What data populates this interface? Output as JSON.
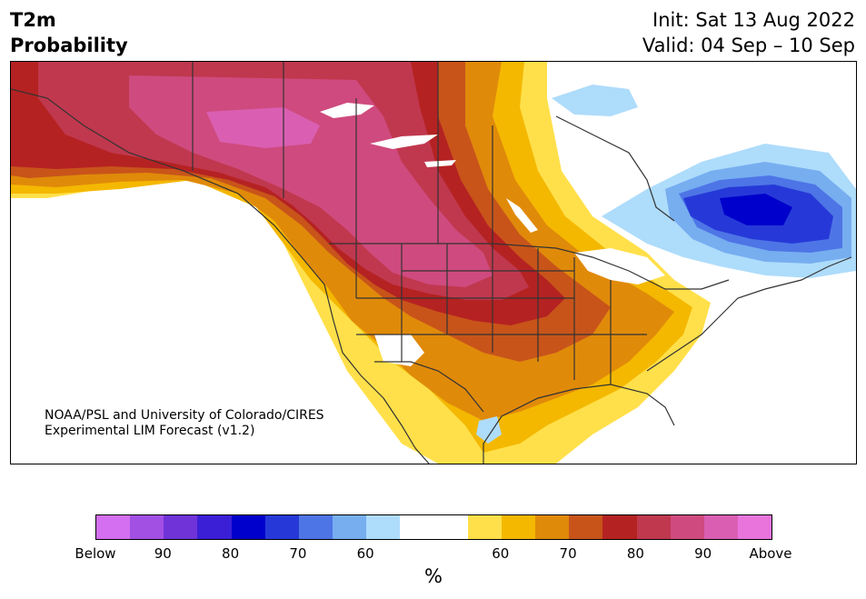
{
  "header": {
    "title_line1": "T2m",
    "title_line2": "Probability",
    "init_line": "Init: Sat 13 Aug 2022",
    "valid_line": "Valid: 04 Sep – 10 Sep"
  },
  "credit": {
    "line1": "NOAA/PSL and University of Colorado/CIRES",
    "line2": "Experimental LIM Forecast (v1.2)"
  },
  "colorbar": {
    "unit": "%",
    "colors": [
      "#d36ff0",
      "#a24fe4",
      "#6f33d8",
      "#3b1fd7",
      "#0000cc",
      "#2639d8",
      "#4e75e6",
      "#76aef0",
      "#aedcfb",
      "#ffffff",
      "#ffffff",
      "#ffe04a",
      "#f4b800",
      "#e08a0a",
      "#c8541a",
      "#b52222",
      "#c0384e",
      "#cf4a7e",
      "#da5fb2",
      "#e874dc"
    ],
    "tick_labels": [
      "Below",
      "90",
      "80",
      "70",
      "60",
      "60",
      "70",
      "80",
      "90",
      "Above"
    ]
  },
  "map": {
    "colors": {
      "ocean": "#ffffff",
      "land_neutral": "#ffffff",
      "p60_warm": "#ffe04a",
      "p65_warm": "#f4b800",
      "p70_warm": "#e08a0a",
      "p75_warm": "#c8541a",
      "p80_warm": "#b52222",
      "p85_warm": "#c0384e",
      "p90_warm": "#cf4a7e",
      "p95_warm": "#da5fb2",
      "p60_cold": "#aedcfb",
      "p65_cold": "#76aef0",
      "p70_cold": "#4e75e6",
      "p75_cold": "#2639d8",
      "p80_cold": "#0000cc",
      "boundary": "#333333"
    }
  }
}
